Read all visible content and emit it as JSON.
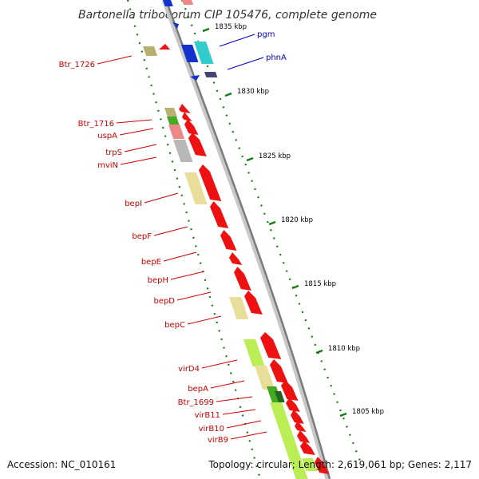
{
  "title": "Bartonella tribocorum CIP 105476, complete genome",
  "footer": {
    "accession": "Accession: NC_010161",
    "summary": "Topology: circular; Length: 2,619,061 bp; Genes: 2,117"
  },
  "colors": {
    "backbone": "#8c8c8c",
    "tick": "#1a7a1a",
    "label_red": "#cc0000",
    "label_blue": "#0000cc",
    "gene_red": "#ee1111",
    "gene_blue": "#1133cc",
    "gene_cyan": "#33cccc",
    "gene_khaki": "#e8dd99",
    "gene_olive": "#b8b070",
    "gene_green": "#44aa22",
    "gene_pink": "#ee8888",
    "gene_gray": "#b8b8b8",
    "gene_lime": "#bbee55"
  },
  "scale_ticks": [
    "1835 kbp",
    "1830 kbp",
    "1825 kbp",
    "1820 kbp",
    "1815 kbp",
    "1810 kbp",
    "1805 kbp"
  ],
  "genes_right": [
    {
      "name": "pgm"
    },
    {
      "name": "phnA"
    }
  ],
  "genes_left": [
    {
      "name": "Btr_1726"
    },
    {
      "name": "Btr_1716"
    },
    {
      "name": "uspA"
    },
    {
      "name": "trpS"
    },
    {
      "name": "mviN"
    },
    {
      "name": "bepI"
    },
    {
      "name": "bepF"
    },
    {
      "name": "bepE"
    },
    {
      "name": "bepH"
    },
    {
      "name": "bepD"
    },
    {
      "name": "bepC"
    },
    {
      "name": "virD4"
    },
    {
      "name": "bepA"
    },
    {
      "name": "Btr_1699"
    },
    {
      "name": "virB11"
    },
    {
      "name": "virB10"
    },
    {
      "name": "virB9"
    }
  ]
}
